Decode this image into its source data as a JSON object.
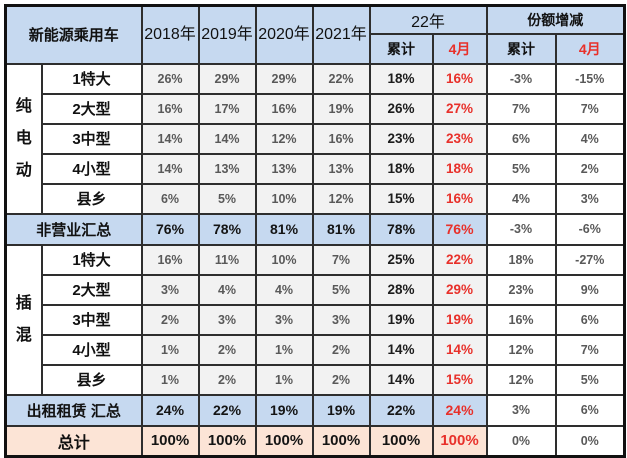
{
  "colors": {
    "header_bg": "#c6d9f0",
    "summary_row_bg": "#c6d9f0",
    "data_cell_bg": "#f2f2f2",
    "total_row_bg": "#fce4d6",
    "red_text": "#e8302a",
    "gray_text": "#595959"
  },
  "table": {
    "header": {
      "title": "新能源乘用车",
      "years": [
        "2018年",
        "2019年",
        "2020年",
        "2021年"
      ],
      "group_22": "22年",
      "group_share": "份额增减",
      "sub_cumulative": "累计",
      "sub_april": "4月"
    },
    "rows": [
      {
        "type": "group-start",
        "group": "纯电动",
        "label": "1特大",
        "values": [
          "26%",
          "29%",
          "29%",
          "22%",
          "18%",
          "16%",
          "-3%",
          "-15%"
        ]
      },
      {
        "type": "sub",
        "label": "2大型",
        "values": [
          "16%",
          "17%",
          "16%",
          "19%",
          "26%",
          "27%",
          "7%",
          "7%"
        ]
      },
      {
        "type": "sub",
        "label": "3中型",
        "values": [
          "14%",
          "14%",
          "12%",
          "16%",
          "23%",
          "23%",
          "6%",
          "4%"
        ]
      },
      {
        "type": "sub",
        "label": "4小型",
        "values": [
          "14%",
          "13%",
          "13%",
          "13%",
          "18%",
          "18%",
          "5%",
          "2%"
        ]
      },
      {
        "type": "sub",
        "label": "县乡",
        "values": [
          "6%",
          "5%",
          "10%",
          "12%",
          "15%",
          "16%",
          "4%",
          "3%"
        ]
      },
      {
        "type": "summary",
        "label": "非营业汇总",
        "values": [
          "76%",
          "78%",
          "81%",
          "81%",
          "78%",
          "76%",
          "-3%",
          "-6%"
        ]
      },
      {
        "type": "group-start",
        "group": "插混",
        "label": "1特大",
        "values": [
          "16%",
          "11%",
          "10%",
          "7%",
          "25%",
          "22%",
          "18%",
          "-27%"
        ]
      },
      {
        "type": "sub",
        "label": "2大型",
        "values": [
          "3%",
          "4%",
          "4%",
          "5%",
          "28%",
          "29%",
          "23%",
          "9%"
        ]
      },
      {
        "type": "sub",
        "label": "3中型",
        "values": [
          "2%",
          "3%",
          "3%",
          "3%",
          "19%",
          "19%",
          "16%",
          "6%"
        ]
      },
      {
        "type": "sub",
        "label": "4小型",
        "values": [
          "1%",
          "2%",
          "1%",
          "2%",
          "14%",
          "14%",
          "12%",
          "7%"
        ]
      },
      {
        "type": "sub",
        "label": "县乡",
        "values": [
          "1%",
          "2%",
          "1%",
          "2%",
          "14%",
          "15%",
          "12%",
          "5%"
        ]
      },
      {
        "type": "summary",
        "label": "出租租赁 汇总",
        "values": [
          "24%",
          "22%",
          "19%",
          "19%",
          "22%",
          "24%",
          "3%",
          "6%"
        ]
      },
      {
        "type": "total",
        "label": "总计",
        "values": [
          "100%",
          "100%",
          "100%",
          "100%",
          "100%",
          "100%",
          "0%",
          "0%"
        ]
      }
    ]
  },
  "chart_data": {
    "type": "table",
    "title": "新能源乘用车",
    "columns": [
      "新能源乘用车",
      "2018年",
      "2019年",
      "2020年",
      "2021年",
      "22年 累计",
      "22年 4月",
      "份额增减 累计",
      "份额增减 4月"
    ],
    "rows": [
      [
        "纯电动 1特大",
        "26%",
        "29%",
        "29%",
        "22%",
        "18%",
        "16%",
        "-3%",
        "-15%"
      ],
      [
        "纯电动 2大型",
        "16%",
        "17%",
        "16%",
        "19%",
        "26%",
        "27%",
        "7%",
        "7%"
      ],
      [
        "纯电动 3中型",
        "14%",
        "14%",
        "12%",
        "16%",
        "23%",
        "23%",
        "6%",
        "4%"
      ],
      [
        "纯电动 4小型",
        "14%",
        "13%",
        "13%",
        "13%",
        "18%",
        "18%",
        "5%",
        "2%"
      ],
      [
        "纯电动 县乡",
        "6%",
        "5%",
        "10%",
        "12%",
        "15%",
        "16%",
        "4%",
        "3%"
      ],
      [
        "非营业汇总",
        "76%",
        "78%",
        "81%",
        "81%",
        "78%",
        "76%",
        "-3%",
        "-6%"
      ],
      [
        "插混 1特大",
        "16%",
        "11%",
        "10%",
        "7%",
        "25%",
        "22%",
        "18%",
        "-27%"
      ],
      [
        "插混 2大型",
        "3%",
        "4%",
        "4%",
        "5%",
        "28%",
        "29%",
        "23%",
        "9%"
      ],
      [
        "插混 3中型",
        "2%",
        "3%",
        "3%",
        "3%",
        "19%",
        "19%",
        "16%",
        "6%"
      ],
      [
        "插混 4小型",
        "1%",
        "2%",
        "1%",
        "2%",
        "14%",
        "14%",
        "12%",
        "7%"
      ],
      [
        "插混 县乡",
        "1%",
        "2%",
        "1%",
        "2%",
        "14%",
        "15%",
        "12%",
        "5%"
      ],
      [
        "出租租赁 汇总",
        "24%",
        "22%",
        "19%",
        "19%",
        "22%",
        "24%",
        "3%",
        "6%"
      ],
      [
        "总计",
        "100%",
        "100%",
        "100%",
        "100%",
        "100%",
        "100%",
        "0%",
        "0%"
      ]
    ]
  }
}
